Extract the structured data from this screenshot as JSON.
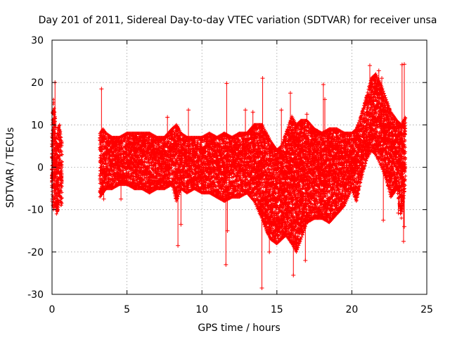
{
  "chart_data": {
    "type": "scatter",
    "title": "Day 201 of 2011, Sidereal Day-to-day VTEC variation (SDTVAR) for receiver unsa",
    "xlabel": "GPS time / hours",
    "ylabel": "SDTVAR / TECUs",
    "xlim": [
      0,
      25
    ],
    "ylim": [
      -30,
      30
    ],
    "xticks": [
      0,
      5,
      10,
      15,
      20,
      25
    ],
    "yticks": [
      -30,
      -20,
      -10,
      0,
      10,
      20,
      30
    ],
    "xtick_labels": [
      "0",
      "5",
      "10",
      "15",
      "20",
      "25"
    ],
    "ytick_labels": [
      "-30",
      "-20",
      "-10",
      "0",
      "10",
      "20",
      "30"
    ],
    "grid": true,
    "color": "#ff0000",
    "marker": "plus",
    "series": [
      {
        "name": "SDTVAR",
        "envelope_hours": [
          0.0,
          0.1,
          0.2,
          0.3,
          0.4,
          0.5,
          0.6,
          0.7,
          3.2,
          3.4,
          3.6,
          4.0,
          4.5,
          5.0,
          5.5,
          6.0,
          6.5,
          7.0,
          7.5,
          8.0,
          8.3,
          8.6,
          9.0,
          9.5,
          10.0,
          10.5,
          11.0,
          11.5,
          12.0,
          12.5,
          13.0,
          13.5,
          14.0,
          14.3,
          14.6,
          15.0,
          15.3,
          15.6,
          16.0,
          16.3,
          16.6,
          17.0,
          17.5,
          18.0,
          18.5,
          19.0,
          19.5,
          20.0,
          20.3,
          20.6,
          21.0,
          21.3,
          21.6,
          22.0,
          22.3,
          22.6,
          23.0,
          23.3,
          23.6
        ],
        "envelope_min": [
          -8,
          -10,
          -9,
          -11,
          -10,
          -7,
          -9,
          -8,
          -7,
          -6,
          -5,
          -5,
          -4,
          -4,
          -5,
          -5,
          -6,
          -5,
          -5,
          -4,
          -8,
          -5,
          -6,
          -5,
          -6,
          -6,
          -7,
          -8,
          -7,
          -7,
          -6,
          -8,
          -12,
          -15,
          -17,
          -18,
          -17,
          -16,
          -18,
          -20,
          -17,
          -13,
          -12,
          -12,
          -13,
          -11,
          -9,
          -5,
          -8,
          -3,
          2,
          4,
          3,
          0,
          -3,
          -7,
          -5,
          -12,
          -3
        ],
        "envelope_max": [
          10,
          16,
          12,
          7,
          9,
          10,
          7,
          5,
          8,
          9,
          8,
          7,
          7,
          8,
          8,
          8,
          8,
          7,
          7,
          9,
          10,
          8,
          7,
          7,
          7,
          8,
          7,
          8,
          7,
          8,
          8,
          10,
          10,
          8,
          6,
          4,
          5,
          8,
          12,
          10,
          11,
          11,
          9,
          8,
          9,
          9,
          8,
          8,
          9,
          12,
          17,
          21,
          22,
          19,
          16,
          13,
          11,
          10,
          12
        ],
        "outliers": [
          [
            0.2,
            20
          ],
          [
            3.3,
            18.5
          ],
          [
            3.45,
            -7.5
          ],
          [
            4.6,
            -7.5
          ],
          [
            7.7,
            11.8
          ],
          [
            8.4,
            -18.5
          ],
          [
            8.6,
            -13.5
          ],
          [
            9.1,
            13.5
          ],
          [
            11.6,
            -23
          ],
          [
            11.65,
            19.8
          ],
          [
            11.7,
            -15
          ],
          [
            12.9,
            13.5
          ],
          [
            13.4,
            13
          ],
          [
            14.0,
            -28.5
          ],
          [
            14.05,
            21
          ],
          [
            14.5,
            -20
          ],
          [
            15.3,
            13.5
          ],
          [
            15.9,
            17.5
          ],
          [
            16.1,
            -25.5
          ],
          [
            16.9,
            -22
          ],
          [
            17.0,
            12.5
          ],
          [
            18.1,
            19.5
          ],
          [
            18.2,
            16
          ],
          [
            21.2,
            24
          ],
          [
            21.8,
            22.8
          ],
          [
            22.0,
            21
          ],
          [
            22.1,
            -12.5
          ],
          [
            23.1,
            -10.8
          ],
          [
            23.35,
            24.2
          ],
          [
            23.45,
            -17.5
          ],
          [
            23.5,
            24.3
          ],
          [
            23.5,
            -14
          ]
        ]
      }
    ]
  }
}
